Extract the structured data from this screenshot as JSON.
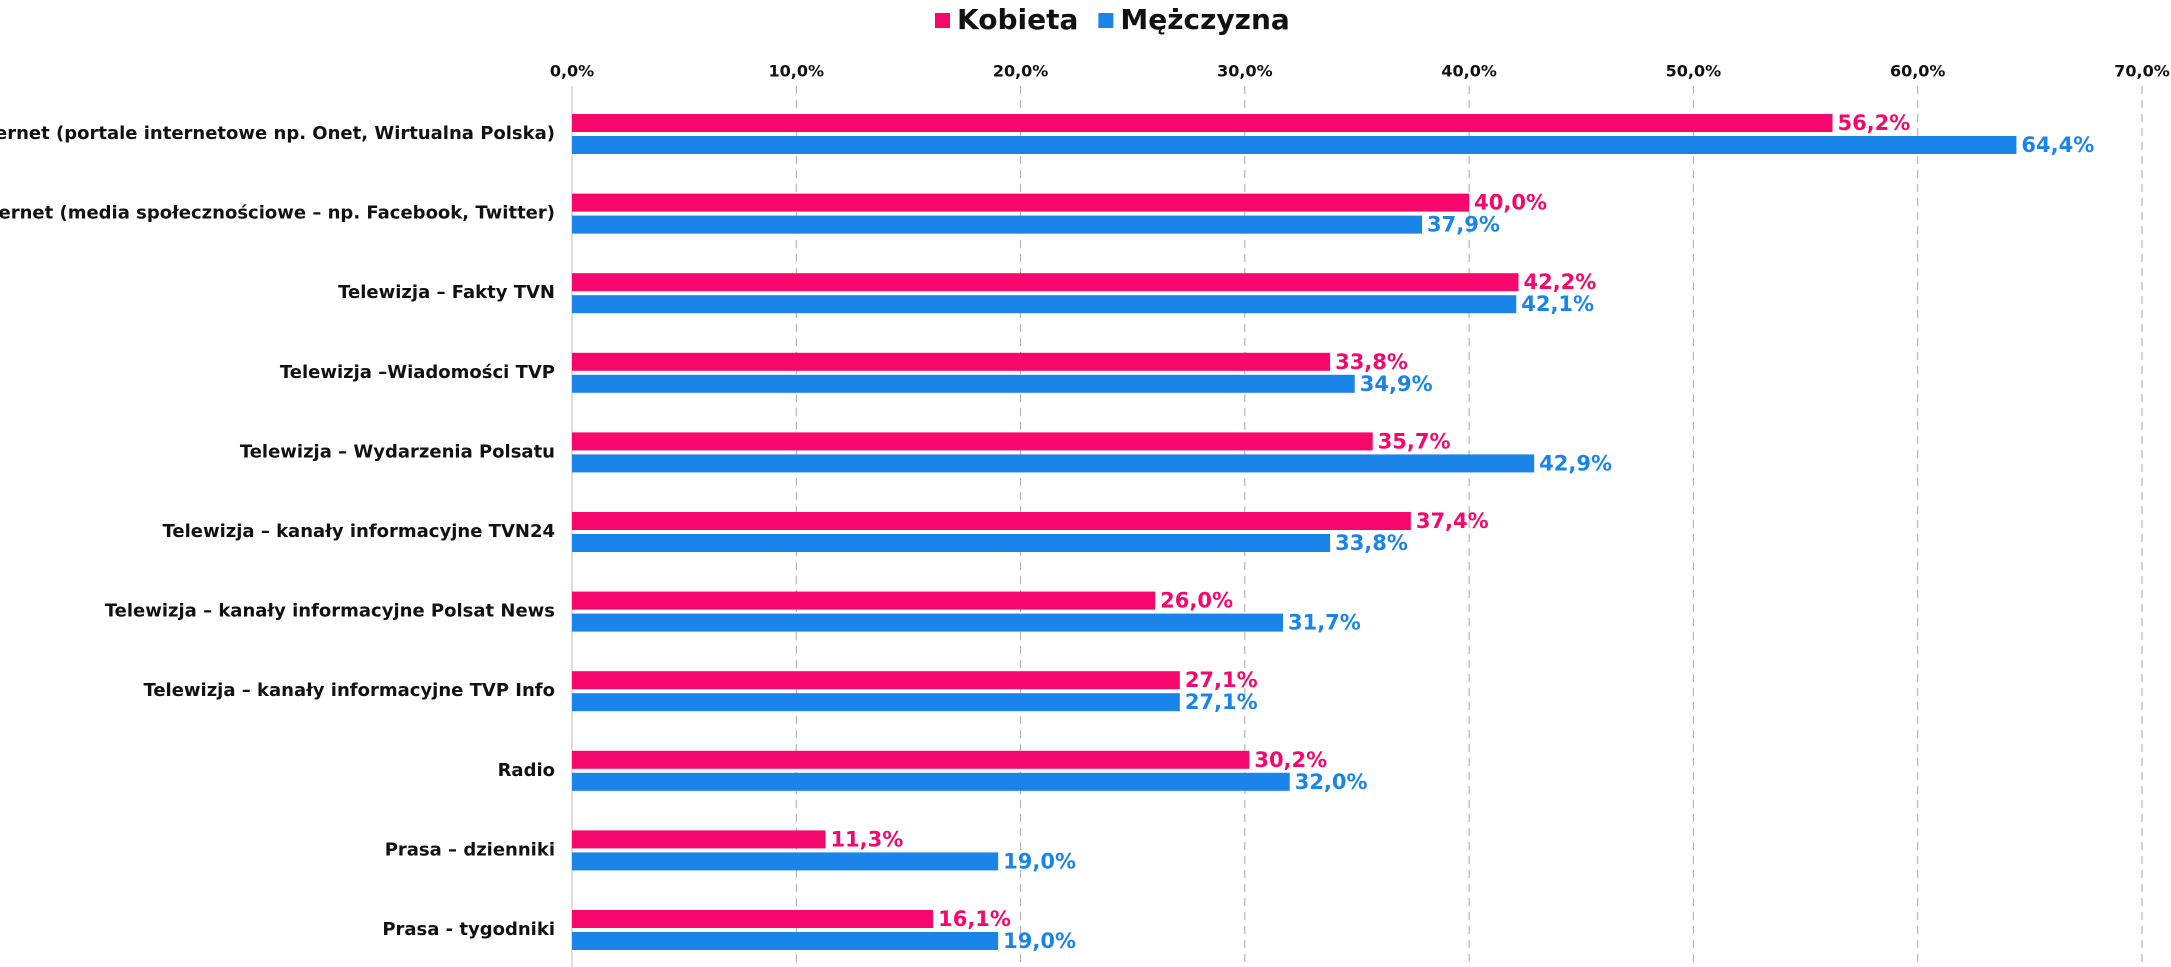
{
  "chart_data": {
    "type": "bar",
    "orientation": "horizontal",
    "categories": [
      "Internet (portale internetowe np. Onet, Wirtualna Polska)",
      "Internet (media społecznościowe – np. Facebook, Twitter)",
      "Telewizja – Fakty TVN",
      "Telewizja –Wiadomości TVP",
      "Telewizja – Wydarzenia Polsatu",
      "Telewizja – kanały informacyjne TVN24",
      "Telewizja – kanały informacyjne Polsat News",
      "Telewizja – kanały informacyjne TVP Info",
      "Radio",
      "Prasa – dzienniki",
      "Prasa - tygodniki"
    ],
    "series": [
      {
        "name": "Kobieta",
        "color": "#f5076b",
        "values": [
          56.2,
          40.0,
          42.2,
          33.8,
          35.7,
          37.4,
          26.0,
          27.1,
          30.2,
          11.3,
          16.1
        ],
        "value_labels": [
          "56,2%",
          "40,0%",
          "42,2%",
          "33,8%",
          "35,7%",
          "37,4%",
          "26,0%",
          "27,1%",
          "30,2%",
          "11,3%",
          "16,1%"
        ]
      },
      {
        "name": "Mężczyzna",
        "color": "#1a84e8",
        "values": [
          64.4,
          37.9,
          42.1,
          34.9,
          42.9,
          33.8,
          31.7,
          27.1,
          32.0,
          19.0,
          19.0
        ],
        "value_labels": [
          "64,4%",
          "37,9%",
          "42,1%",
          "34,9%",
          "42,9%",
          "33,8%",
          "31,7%",
          "27,1%",
          "32,0%",
          "19,0%",
          "19,0%"
        ]
      }
    ],
    "xlim": [
      0,
      70
    ],
    "xticks": [
      {
        "value": 0,
        "label": "0,0%"
      },
      {
        "value": 10,
        "label": "10,0%"
      },
      {
        "value": 20,
        "label": "20,0%"
      },
      {
        "value": 30,
        "label": "30,0%"
      },
      {
        "value": 40,
        "label": "40,0%"
      },
      {
        "value": 50,
        "label": "50,0%"
      },
      {
        "value": 60,
        "label": "60,0%"
      },
      {
        "value": 70,
        "label": "70,0%"
      }
    ],
    "grid": true,
    "legend": "top"
  }
}
